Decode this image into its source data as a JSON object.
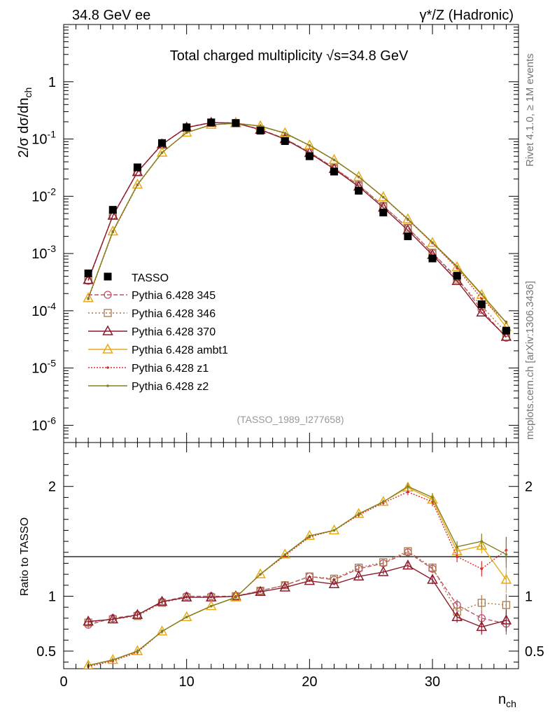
{
  "header": {
    "left": "34.8 GeV ee",
    "right": "γ*/Z (Hadronic)"
  },
  "side_labels": {
    "top": "Rivet 4.1.0, ≥ 1M events",
    "bottom": "mcplots.cern.ch [arXiv:1306.3436]"
  },
  "chart_data": {
    "type": "line",
    "title": "Total charged multiplicity √s=34.8 GeV",
    "watermark": "(TASSO_1989_I277658)",
    "xlabel": "n_ch",
    "ylabel": "2/σ  dσ/dn_ch",
    "ratio_ylabel": "Ratio to TASSO",
    "xlim": [
      0,
      37
    ],
    "ylim": [
      5e-07,
      10
    ],
    "ratio_ylim": [
      0.34,
      2.4
    ],
    "x_ticks": [
      "0",
      "10",
      "20",
      "30"
    ],
    "y_ticks": [
      "10^-6",
      "10^-5",
      "10^-4",
      "10^-3",
      "10^-2",
      "10^-1",
      "1"
    ],
    "ratio_ticks": [
      "0.5",
      "1",
      "2"
    ],
    "x": [
      2,
      4,
      6,
      8,
      10,
      12,
      14,
      16,
      18,
      20,
      22,
      24,
      26,
      28,
      30,
      32,
      34,
      36
    ],
    "data": {
      "name": "TASSO",
      "values": [
        0.00045,
        0.0058,
        0.032,
        0.085,
        0.16,
        0.195,
        0.19,
        0.14,
        0.092,
        0.05,
        0.027,
        0.0125,
        0.0052,
        0.002,
        0.00082,
        0.00041,
        0.00013,
        4.5e-05
      ]
    },
    "series": [
      {
        "name": "Pythia 6.428 345",
        "color": "#c0506a",
        "dash": "6,3",
        "marker": "circle",
        "ratio": [
          0.74,
          0.8,
          0.83,
          0.95,
          1.0,
          1.0,
          1.0,
          1.05,
          1.1,
          1.18,
          1.15,
          1.25,
          1.3,
          1.4,
          1.25,
          0.92,
          0.8,
          0.75
        ],
        "ratio_err": [
          0.03,
          0.02,
          0.02,
          0.02,
          0.01,
          0.01,
          0.01,
          0.01,
          0.01,
          0.01,
          0.01,
          0.02,
          0.02,
          0.03,
          0.04,
          0.05,
          0.07,
          0.1
        ]
      },
      {
        "name": "Pythia 6.428 346",
        "color": "#a87a4a",
        "dash": "2,3",
        "marker": "square",
        "ratio": [
          0.76,
          0.79,
          0.82,
          0.94,
          0.99,
          0.99,
          1.0,
          1.05,
          1.1,
          1.18,
          1.16,
          1.26,
          1.31,
          1.41,
          1.26,
          0.86,
          0.94,
          0.92
        ],
        "ratio_err": [
          0.03,
          0.02,
          0.02,
          0.02,
          0.01,
          0.01,
          0.01,
          0.01,
          0.01,
          0.01,
          0.01,
          0.02,
          0.02,
          0.03,
          0.04,
          0.05,
          0.07,
          0.1
        ]
      },
      {
        "name": "Pythia 6.428 370",
        "color": "#8b1a2c",
        "dash": "",
        "marker": "triangle",
        "ratio": [
          0.77,
          0.79,
          0.83,
          0.95,
          0.99,
          0.99,
          1.0,
          1.04,
          1.08,
          1.14,
          1.11,
          1.18,
          1.22,
          1.28,
          1.15,
          0.81,
          0.72,
          0.78
        ],
        "ratio_err": [
          0.03,
          0.02,
          0.02,
          0.02,
          0.01,
          0.01,
          0.01,
          0.01,
          0.01,
          0.01,
          0.01,
          0.02,
          0.02,
          0.03,
          0.04,
          0.05,
          0.07,
          0.1
        ]
      },
      {
        "name": "Pythia 6.428 ambt1",
        "color": "#e8aa16",
        "dash": "",
        "marker": "triangle",
        "ratio": [
          0.37,
          0.42,
          0.5,
          0.68,
          0.81,
          0.91,
          0.99,
          1.2,
          1.38,
          1.55,
          1.6,
          1.75,
          1.86,
          1.99,
          1.88,
          1.41,
          1.46,
          1.15
        ],
        "ratio_err": [
          0.03,
          0.02,
          0.02,
          0.02,
          0.01,
          0.01,
          0.01,
          0.01,
          0.01,
          0.01,
          0.01,
          0.02,
          0.02,
          0.03,
          0.04,
          0.05,
          0.07,
          0.12
        ]
      },
      {
        "name": "Pythia 6.428 z1",
        "color": "#dd2a2a",
        "dash": "2,2",
        "marker": "dot",
        "ratio": [
          0.36,
          0.41,
          0.49,
          0.68,
          0.81,
          0.91,
          0.99,
          1.2,
          1.37,
          1.54,
          1.6,
          1.74,
          1.85,
          1.95,
          1.86,
          1.36,
          1.25,
          1.42
        ],
        "ratio_err": [
          0.03,
          0.02,
          0.02,
          0.02,
          0.01,
          0.01,
          0.01,
          0.01,
          0.01,
          0.01,
          0.01,
          0.02,
          0.02,
          0.03,
          0.04,
          0.05,
          0.07,
          0.12
        ]
      },
      {
        "name": "Pythia 6.428 z2",
        "color": "#808020",
        "dash": "",
        "marker": "dot",
        "ratio": [
          0.37,
          0.42,
          0.5,
          0.68,
          0.81,
          0.91,
          0.99,
          1.2,
          1.38,
          1.55,
          1.6,
          1.75,
          1.86,
          2.0,
          1.9,
          1.45,
          1.5,
          1.38
        ],
        "ratio_err": [
          0.03,
          0.02,
          0.02,
          0.02,
          0.01,
          0.01,
          0.01,
          0.01,
          0.01,
          0.01,
          0.01,
          0.02,
          0.02,
          0.03,
          0.04,
          0.05,
          0.07,
          0.12
        ]
      }
    ]
  }
}
